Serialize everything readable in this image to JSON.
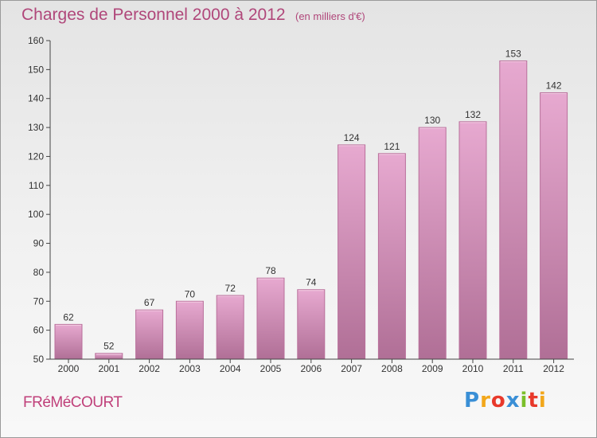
{
  "header": {
    "title": "Charges de Personnel 2000 à 2012",
    "subtitle": "(en milliers d'€)"
  },
  "footer": {
    "commune": "FRéMéCOURT",
    "brand_letters": [
      {
        "ch": "P",
        "color": "#3a8fd6"
      },
      {
        "ch": "r",
        "color": "#f2a71b"
      },
      {
        "ch": "o",
        "color": "#e8392b"
      },
      {
        "ch": "x",
        "color": "#3a8fd6"
      },
      {
        "ch": "i",
        "color": "#7bbf2a"
      },
      {
        "ch": "t",
        "color": "#e8392b"
      },
      {
        "ch": "i",
        "color": "#f2a71b"
      }
    ]
  },
  "colors": {
    "bar_top": "#e7a9d0",
    "bar_bottom": "#b06f96",
    "bar_edge": "#b9709b",
    "axis": "#444444",
    "text": "#333333"
  },
  "chart_data": {
    "type": "bar",
    "categories": [
      "2000",
      "2001",
      "2002",
      "2003",
      "2004",
      "2005",
      "2006",
      "2007",
      "2008",
      "2009",
      "2010",
      "2011",
      "2012"
    ],
    "values": [
      62,
      52,
      67,
      70,
      72,
      78,
      74,
      124,
      121,
      130,
      132,
      153,
      142
    ],
    "ylim": [
      50,
      160
    ],
    "yticks": [
      50,
      60,
      70,
      80,
      90,
      100,
      110,
      120,
      130,
      140,
      150,
      160
    ],
    "grid": false,
    "data_labels": true
  }
}
